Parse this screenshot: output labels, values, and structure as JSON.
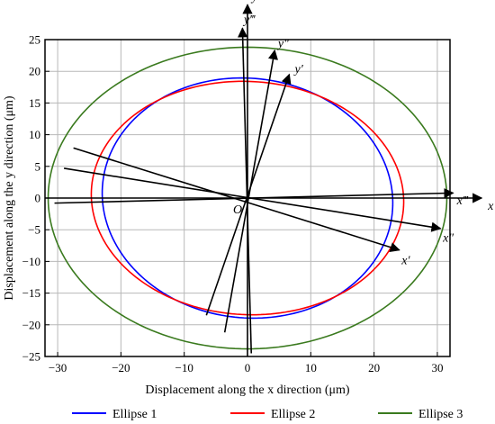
{
  "chart_data": {
    "type": "line",
    "xlabel": "Displacement along the x direction (μm)",
    "ylabel": "Displacement along the y direction (μm)",
    "xlim": [
      -32,
      32
    ],
    "ylim": [
      -25,
      25
    ],
    "x_ticks": [
      -30,
      -20,
      -10,
      0,
      10,
      20,
      30
    ],
    "y_ticks": [
      -25,
      -20,
      -15,
      -10,
      -5,
      0,
      5,
      10,
      15,
      20,
      25
    ],
    "x_ticks_text": [
      "−30",
      "−20",
      "−10",
      "0",
      "10",
      "20",
      "30"
    ],
    "y_ticks_text": [
      "−25",
      "−20",
      "−15",
      "−10",
      "−5",
      "0",
      "5",
      "10",
      "15",
      "20",
      "25"
    ],
    "grid": true,
    "legend_position": "bottom",
    "series": [
      {
        "name": "Ellipse 1",
        "color": "#0000ff",
        "cx": 0,
        "cy": 0,
        "a": 23,
        "b": 18.9,
        "angle_deg": -6
      },
      {
        "name": "Ellipse 2",
        "color": "#ff0000",
        "cx": 0,
        "cy": 0,
        "a": 24.7,
        "b": 18.4,
        "angle_deg": -3
      },
      {
        "name": "Ellipse 3",
        "color": "#3a7a1e",
        "cx": 0,
        "cy": 0,
        "a": 31.5,
        "b": 23.8,
        "angle_deg": 0
      }
    ],
    "reference_axes": [
      {
        "label": "x",
        "from": [
          -32,
          0
        ],
        "to": [
          37,
          0
        ]
      },
      {
        "label": "y",
        "from": [
          0,
          -25
        ],
        "to": [
          0,
          30.5
        ]
      },
      {
        "label": "x′",
        "from": [
          -27.5,
          7.9
        ],
        "to": [
          24,
          -8.2
        ]
      },
      {
        "label": "y′",
        "from": [
          -6.5,
          -18.5
        ],
        "to": [
          6.6,
          19.5
        ]
      },
      {
        "label": "x″",
        "from": [
          -29,
          4.7
        ],
        "to": [
          30.5,
          -4.8
        ]
      },
      {
        "label": "y″",
        "from": [
          -3.6,
          -21.2
        ],
        "to": [
          4.3,
          23.3
        ]
      },
      {
        "label": "x‴",
        "from": [
          -30.5,
          -0.8
        ],
        "to": [
          32.5,
          0.8
        ]
      },
      {
        "label": "y‴",
        "from": [
          0.6,
          -24.5
        ],
        "to": [
          -0.8,
          26.8
        ]
      }
    ],
    "origin_label": "O"
  }
}
